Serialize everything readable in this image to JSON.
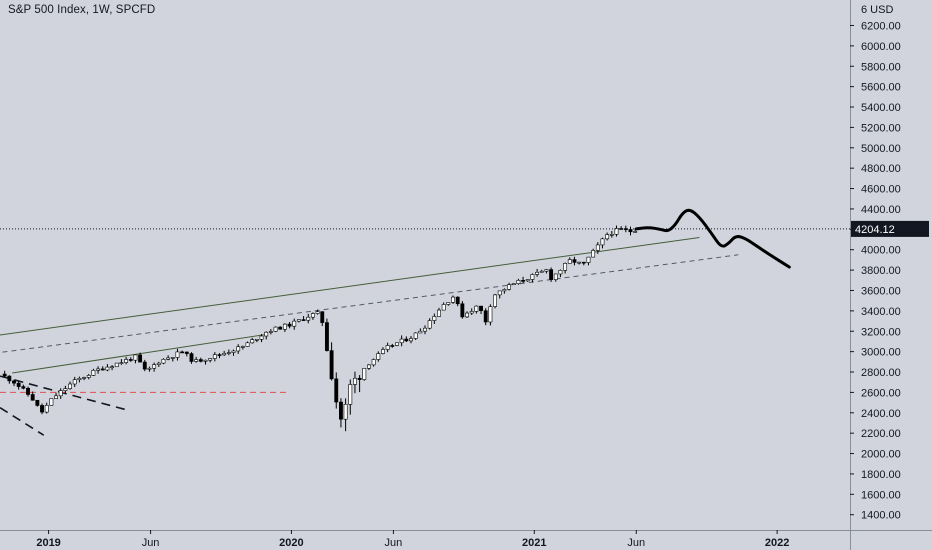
{
  "header": {
    "title": "S&P 500 Index, 1W, SPCFD"
  },
  "chart_data": {
    "type": "candlestick",
    "title": "S&P 500 Index, 1W, SPCFD",
    "currency_label": "USD",
    "y_axis_top_label": "6",
    "ylim": [
      1250,
      6450
    ],
    "yticks": [
      1400,
      1600,
      1800,
      2000,
      2200,
      2400,
      2600,
      2800,
      3000,
      3200,
      3400,
      3600,
      3800,
      4000,
      4200,
      4400,
      4600,
      4800,
      5000,
      5200,
      5400,
      5600,
      5800,
      6000,
      6200
    ],
    "ytick_labels": [
      "1400.00",
      "1600.00",
      "1800.00",
      "2000.00",
      "2200.00",
      "2400.00",
      "2600.00",
      "2800.00",
      "3000.00",
      "3200.00",
      "3400.00",
      "3600.00",
      "3800.00",
      "4000.00",
      "4200.00",
      "4400.00",
      "4600.00",
      "4800.00",
      "5000.00",
      "5200.00",
      "5400.00",
      "5600.00",
      "5800.00",
      "6000.00",
      "6200.00"
    ],
    "xlim": [
      2018.8,
      2022.3
    ],
    "xticks": [
      {
        "value": 2019.0,
        "label": "2019",
        "bold": true
      },
      {
        "value": 2019.42,
        "label": "Jun",
        "bold": false
      },
      {
        "value": 2020.0,
        "label": "2020",
        "bold": true
      },
      {
        "value": 2020.42,
        "label": "Jun",
        "bold": false
      },
      {
        "value": 2021.0,
        "label": "2021",
        "bold": true
      },
      {
        "value": 2021.42,
        "label": "Jun",
        "bold": false
      },
      {
        "value": 2022.0,
        "label": "2022",
        "bold": true
      }
    ],
    "last_price": 4204.12,
    "last_price_label": "4204.12",
    "grid": false,
    "candle_up_color": "#ffffff",
    "candle_down_color": "#000000",
    "anchors": [
      [
        2018.8,
        2780
      ],
      [
        2018.86,
        2700
      ],
      [
        2018.93,
        2550
      ],
      [
        2018.97,
        2400
      ],
      [
        2019.02,
        2550
      ],
      [
        2019.1,
        2700
      ],
      [
        2019.2,
        2820
      ],
      [
        2019.3,
        2900
      ],
      [
        2019.36,
        2950
      ],
      [
        2019.4,
        2800
      ],
      [
        2019.45,
        2900
      ],
      [
        2019.55,
        3000
      ],
      [
        2019.6,
        2900
      ],
      [
        2019.7,
        2970
      ],
      [
        2019.8,
        3050
      ],
      [
        2019.9,
        3200
      ],
      [
        2020.0,
        3270
      ],
      [
        2020.08,
        3360
      ],
      [
        2020.12,
        3380
      ],
      [
        2020.15,
        3000
      ],
      [
        2020.19,
        2450
      ],
      [
        2020.21,
        2300
      ],
      [
        2020.24,
        2650
      ],
      [
        2020.3,
        2850
      ],
      [
        2020.4,
        3050
      ],
      [
        2020.5,
        3150
      ],
      [
        2020.55,
        3250
      ],
      [
        2020.62,
        3450
      ],
      [
        2020.67,
        3550
      ],
      [
        2020.7,
        3350
      ],
      [
        2020.77,
        3450
      ],
      [
        2020.8,
        3300
      ],
      [
        2020.83,
        3550
      ],
      [
        2020.9,
        3650
      ],
      [
        2021.0,
        3750
      ],
      [
        2021.05,
        3800
      ],
      [
        2021.07,
        3720
      ],
      [
        2021.15,
        3900
      ],
      [
        2021.2,
        3850
      ],
      [
        2021.25,
        4000
      ],
      [
        2021.3,
        4150
      ],
      [
        2021.35,
        4200
      ],
      [
        2021.4,
        4180
      ],
      [
        2021.42,
        4204
      ]
    ],
    "projection": [
      [
        2021.42,
        4204
      ],
      [
        2021.47,
        4220
      ],
      [
        2021.52,
        4200
      ],
      [
        2021.55,
        4180
      ],
      [
        2021.58,
        4240
      ],
      [
        2021.61,
        4360
      ],
      [
        2021.64,
        4400
      ],
      [
        2021.68,
        4320
      ],
      [
        2021.73,
        4160
      ],
      [
        2021.77,
        4020
      ],
      [
        2021.8,
        4060
      ],
      [
        2021.83,
        4140
      ],
      [
        2021.87,
        4110
      ],
      [
        2021.92,
        4030
      ],
      [
        2021.97,
        3950
      ],
      [
        2022.05,
        3830
      ]
    ],
    "trendlines": [
      {
        "color": "#445e3a",
        "dash": "",
        "width": 1,
        "points": [
          [
            2018.7,
            3130
          ],
          [
            2021.68,
            4120
          ]
        ]
      },
      {
        "color": "#555b66",
        "dash": "5,4",
        "width": 1,
        "points": [
          [
            2018.7,
            2960
          ],
          [
            2021.84,
            3950
          ]
        ]
      },
      {
        "color": "#445e3a",
        "dash": "",
        "width": 1,
        "points": [
          [
            2018.85,
            2790
          ],
          [
            2019.9,
            3170
          ]
        ]
      },
      {
        "color": "#131722",
        "dash": "9,6",
        "width": 1.6,
        "points": [
          [
            2018.8,
            2760
          ],
          [
            2019.32,
            2430
          ]
        ]
      },
      {
        "color": "#131722",
        "dash": "9,6",
        "width": 1.6,
        "points": [
          [
            2018.8,
            2450
          ],
          [
            2018.98,
            2180
          ]
        ]
      },
      {
        "color": "#e05050",
        "dash": "6,4",
        "width": 1,
        "points": [
          [
            2018.8,
            2600
          ],
          [
            2019.98,
            2600
          ]
        ]
      }
    ]
  }
}
